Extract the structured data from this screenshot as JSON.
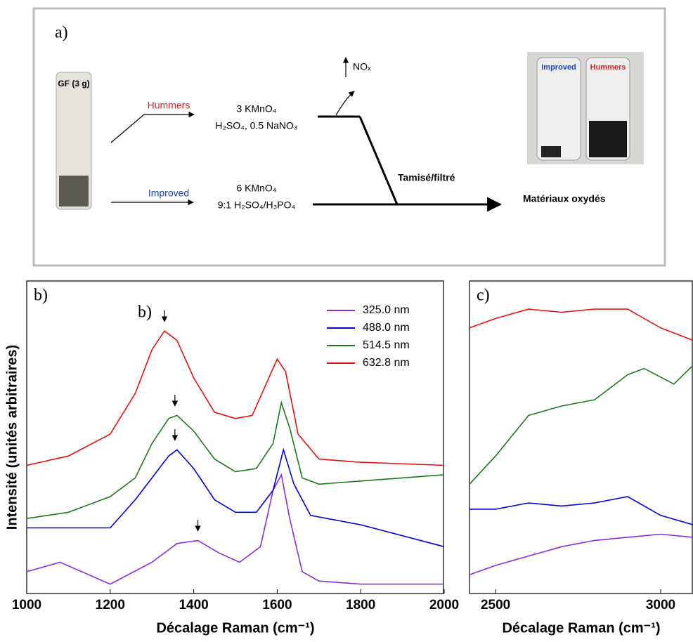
{
  "diagram": {
    "panel_label": "a)",
    "start_photo_label": "GF (3 g)",
    "route_top": "Hummers",
    "route_bottom": "Improved",
    "top_reagents": [
      "3 KMnO₄",
      "H₂SO₄, 0.5 NaNO₃"
    ],
    "bottom_reagents": [
      "6 KMnO₄",
      "9:1 H₂SO₄/H₃PO₄"
    ],
    "gas": "NOₓ",
    "process": "Tamisé/filtré",
    "product": "Matériaux oxydés",
    "product_photo_labels": [
      "Improved",
      "Hummers"
    ]
  },
  "chart_data": [
    {
      "type": "line",
      "panel_label": "b)",
      "annotation": "b)",
      "xlabel": "Décalage Raman (cm⁻¹)",
      "ylabel": "Intensité (unités arbitraires)",
      "xlim": [
        1000,
        2000
      ],
      "xticks": [
        1000,
        1200,
        1400,
        1600,
        1800,
        2000
      ],
      "ylim": [
        0,
        100
      ],
      "legend": "upper right",
      "series": [
        {
          "name": "325.0 nm",
          "color": "#8a2be2",
          "x": [
            1000,
            1080,
            1200,
            1300,
            1360,
            1410,
            1460,
            1510,
            1560,
            1590,
            1610,
            1630,
            1660,
            1700,
            1800,
            2000
          ],
          "values": [
            7,
            10,
            3,
            10,
            16,
            17,
            13,
            10,
            15,
            33,
            38,
            24,
            7,
            4,
            3,
            3
          ]
        },
        {
          "name": "488.0 nm",
          "color": "#0000e0",
          "x": [
            1000,
            1100,
            1200,
            1260,
            1300,
            1340,
            1360,
            1400,
            1450,
            1500,
            1550,
            1590,
            1615,
            1640,
            1680,
            1800,
            2000
          ],
          "values": [
            21,
            21,
            21,
            30,
            37,
            44,
            46,
            40,
            30,
            26,
            26,
            33,
            46,
            35,
            25,
            22,
            15
          ]
        },
        {
          "name": "514.5 nm",
          "color": "#1a7a1a",
          "x": [
            1000,
            1100,
            1200,
            1260,
            1300,
            1340,
            1360,
            1400,
            1450,
            1500,
            1550,
            1590,
            1610,
            1630,
            1660,
            1700,
            1800,
            2000
          ],
          "values": [
            24,
            26,
            31,
            37,
            48,
            56,
            57,
            52,
            43,
            39,
            40,
            48,
            61,
            53,
            37,
            35,
            36,
            38
          ]
        },
        {
          "name": "632.8 nm",
          "color": "#e81010",
          "x": [
            1000,
            1100,
            1200,
            1260,
            1300,
            1330,
            1360,
            1400,
            1450,
            1500,
            1540,
            1580,
            1600,
            1620,
            1650,
            1700,
            1800,
            2000
          ],
          "values": [
            41,
            44,
            51,
            64,
            78,
            84,
            81,
            69,
            58,
            56,
            57,
            69,
            75,
            71,
            51,
            43,
            42,
            41
          ]
        }
      ],
      "peak_markers": [
        {
          "x": 1330,
          "y": 87
        },
        {
          "x": 1355,
          "y": 60
        },
        {
          "x": 1355,
          "y": 49
        },
        {
          "x": 1410,
          "y": 20
        }
      ]
    },
    {
      "type": "line",
      "panel_label": "c)",
      "xlabel": "Décalage Raman (cm⁻¹)",
      "xlim": [
        2421,
        3098
      ],
      "xticks": [
        2500,
        3000
      ],
      "ylim": [
        0,
        100
      ],
      "series": [
        {
          "color": "#8a2be2",
          "x": [
            2421,
            2500,
            2600,
            2700,
            2800,
            2900,
            3000,
            3098
          ],
          "values": [
            6,
            9,
            12,
            15,
            17,
            18,
            19,
            18
          ]
        },
        {
          "color": "#0000e0",
          "x": [
            2421,
            2500,
            2600,
            2700,
            2800,
            2900,
            3000,
            3098
          ],
          "values": [
            27,
            27,
            29,
            28,
            29,
            31,
            25,
            22
          ]
        },
        {
          "color": "#1a7a1a",
          "x": [
            2421,
            2500,
            2600,
            2700,
            2800,
            2900,
            2950,
            3040,
            3098
          ],
          "values": [
            35,
            44,
            57,
            60,
            62,
            70,
            72,
            67,
            73
          ]
        },
        {
          "color": "#e81010",
          "x": [
            2421,
            2500,
            2600,
            2700,
            2800,
            2900,
            3000,
            3098
          ],
          "values": [
            85,
            88,
            91,
            90,
            91,
            91,
            85,
            81
          ]
        }
      ]
    }
  ]
}
